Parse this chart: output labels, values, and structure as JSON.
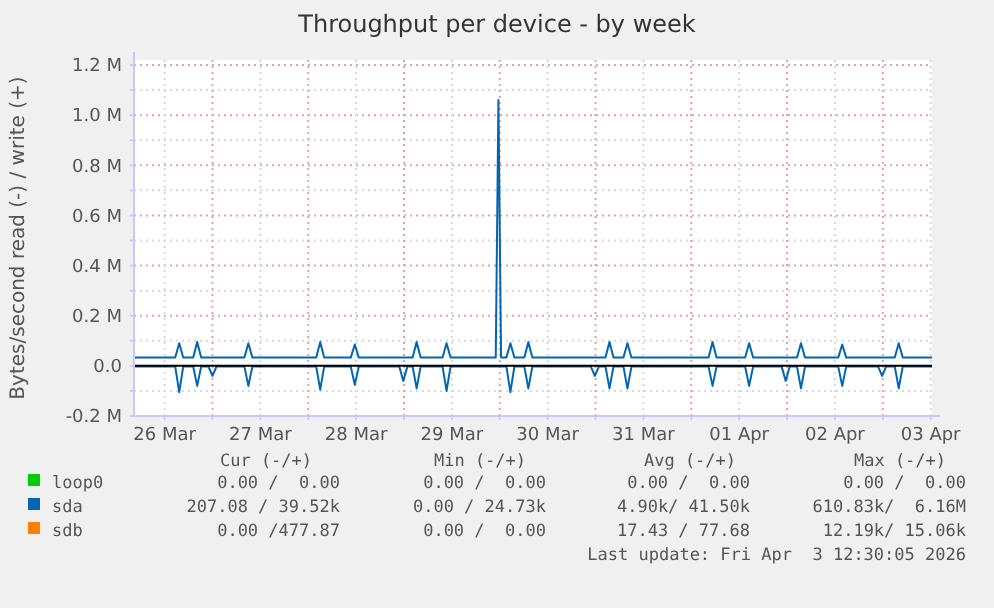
{
  "chart_data": {
    "type": "line",
    "title": "Throughput per device - by week",
    "ylabel": "Bytes/second read (-) / write (+)",
    "xlim": [
      "2026-03-26T04:20",
      "2026-04-03T12:20"
    ],
    "xticks": [
      {
        "value": "2026-03-26T12:00",
        "label": "26 Mar"
      },
      {
        "value": "2026-03-27T00:00",
        "label": null
      },
      {
        "value": "2026-03-27T12:00",
        "label": "27 Mar"
      },
      {
        "value": "2026-03-28T00:00",
        "label": null
      },
      {
        "value": "2026-03-28T12:00",
        "label": "28 Mar"
      },
      {
        "value": "2026-03-29T00:00",
        "label": null
      },
      {
        "value": "2026-03-29T12:00",
        "label": "29 Mar"
      },
      {
        "value": "2026-03-30T00:00",
        "label": null
      },
      {
        "value": "2026-03-30T12:00",
        "label": "30 Mar"
      },
      {
        "value": "2026-03-31T00:00",
        "label": null
      },
      {
        "value": "2026-03-31T12:00",
        "label": "31 Mar"
      },
      {
        "value": "2026-04-01T00:00",
        "label": null
      },
      {
        "value": "2026-04-01T12:00",
        "label": "01 Apr"
      },
      {
        "value": "2026-04-02T00:00",
        "label": null
      },
      {
        "value": "2026-04-02T12:00",
        "label": "02 Apr"
      },
      {
        "value": "2026-04-03T00:00",
        "label": null
      },
      {
        "value": "2026-04-03T12:00",
        "label": "03 Apr"
      }
    ],
    "ylim": [
      -200000,
      1220000
    ],
    "yticks": [
      {
        "value": -200000,
        "label": "-0.2 M"
      },
      {
        "value": -100000,
        "label": null
      },
      {
        "value": 0,
        "label": "0.0"
      },
      {
        "value": 100000,
        "label": null
      },
      {
        "value": 200000,
        "label": "0.2 M"
      },
      {
        "value": 300000,
        "label": null
      },
      {
        "value": 400000,
        "label": "0.4 M"
      },
      {
        "value": 500000,
        "label": null
      },
      {
        "value": 600000,
        "label": "0.6 M"
      },
      {
        "value": 700000,
        "label": null
      },
      {
        "value": 800000,
        "label": "0.8 M"
      },
      {
        "value": 900000,
        "label": null
      },
      {
        "value": 1000000,
        "label": "1.0 M"
      },
      {
        "value": 1100000,
        "label": null
      },
      {
        "value": 1200000,
        "label": "1.2 M"
      }
    ],
    "grid": true,
    "legend": "bottom",
    "marker": "none",
    "line_style": "solid",
    "ref_lines": [
      {
        "axis": "y",
        "value": 0,
        "color": "#000000"
      }
    ],
    "series": [
      {
        "name": "loop0",
        "color": "#00cc00"
      },
      {
        "name": "sda",
        "color": "#0066b3",
        "x": [
          "2026-03-26T04:20",
          "2026-03-26T14:40",
          "2026-03-26T15:40",
          "2026-03-26T16:40",
          "2026-03-26T19:10",
          "2026-03-26T20:10",
          "2026-03-26T21:10",
          "2026-03-27T08:00",
          "2026-03-27T09:00",
          "2026-03-27T10:00",
          "2026-03-28T02:00",
          "2026-03-28T03:00",
          "2026-03-28T04:00",
          "2026-03-28T10:40",
          "2026-03-28T11:40",
          "2026-03-28T12:40",
          "2026-03-29T02:10",
          "2026-03-29T03:10",
          "2026-03-29T04:10",
          "2026-03-29T09:40",
          "2026-03-29T10:40",
          "2026-03-29T11:40",
          "2026-03-29T23:00",
          "2026-03-29T23:40",
          "2026-03-30T00:20",
          "2026-03-30T01:40",
          "2026-03-30T02:40",
          "2026-03-30T03:40",
          "2026-03-30T06:10",
          "2026-03-30T07:10",
          "2026-03-30T08:10",
          "2026-03-31T02:30",
          "2026-03-31T03:30",
          "2026-03-31T04:30",
          "2026-03-31T07:00",
          "2026-03-31T08:00",
          "2026-03-31T09:00",
          "2026-04-01T04:20",
          "2026-04-01T05:20",
          "2026-04-01T06:20",
          "2026-04-01T13:30",
          "2026-04-01T14:30",
          "2026-04-01T15:30",
          "2026-04-02T02:30",
          "2026-04-02T03:30",
          "2026-04-02T04:30",
          "2026-04-02T12:50",
          "2026-04-02T13:50",
          "2026-04-02T14:50",
          "2026-04-03T03:00",
          "2026-04-03T04:00",
          "2026-04-03T05:00",
          "2026-04-03T12:20"
        ],
        "values": [
          33000,
          33000,
          90000,
          33000,
          33000,
          95000,
          33000,
          33000,
          90000,
          33000,
          33000,
          95000,
          33000,
          33000,
          85000,
          33000,
          33000,
          95000,
          33000,
          33000,
          90000,
          33000,
          33000,
          1060000,
          33000,
          33000,
          90000,
          33000,
          33000,
          95000,
          33000,
          33000,
          95000,
          33000,
          33000,
          90000,
          33000,
          33000,
          95000,
          33000,
          33000,
          90000,
          33000,
          33000,
          90000,
          33000,
          33000,
          85000,
          33000,
          33000,
          90000,
          33000,
          33000
        ]
      },
      {
        "color": "#0066b3",
        "x": [
          "2026-03-26T04:20",
          "2026-03-26T14:40",
          "2026-03-26T15:40",
          "2026-03-26T16:40",
          "2026-03-26T19:10",
          "2026-03-26T20:10",
          "2026-03-26T21:10",
          "2026-03-26T23:00",
          "2026-03-27T00:00",
          "2026-03-27T01:00",
          "2026-03-27T08:00",
          "2026-03-27T09:00",
          "2026-03-27T10:00",
          "2026-03-28T02:00",
          "2026-03-28T03:00",
          "2026-03-28T04:00",
          "2026-03-28T10:40",
          "2026-03-28T11:40",
          "2026-03-28T12:40",
          "2026-03-28T22:50",
          "2026-03-28T23:50",
          "2026-03-29T00:50",
          "2026-03-29T02:10",
          "2026-03-29T03:10",
          "2026-03-29T04:10",
          "2026-03-29T09:40",
          "2026-03-29T10:40",
          "2026-03-29T11:40",
          "2026-03-30T01:40",
          "2026-03-30T02:40",
          "2026-03-30T03:40",
          "2026-03-30T06:10",
          "2026-03-30T07:10",
          "2026-03-30T08:10",
          "2026-03-30T22:50",
          "2026-03-30T23:50",
          "2026-03-31T00:50",
          "2026-03-31T02:30",
          "2026-03-31T03:30",
          "2026-03-31T04:30",
          "2026-03-31T07:00",
          "2026-03-31T08:00",
          "2026-03-31T09:00",
          "2026-04-01T04:20",
          "2026-04-01T05:20",
          "2026-04-01T06:20",
          "2026-04-01T13:30",
          "2026-04-01T14:30",
          "2026-04-01T15:30",
          "2026-04-01T22:40",
          "2026-04-01T23:40",
          "2026-04-02T00:40",
          "2026-04-02T02:30",
          "2026-04-02T03:30",
          "2026-04-02T04:30",
          "2026-04-02T12:50",
          "2026-04-02T13:50",
          "2026-04-02T14:50",
          "2026-04-02T22:50",
          "2026-04-02T23:50",
          "2026-04-03T00:50",
          "2026-04-03T03:00",
          "2026-04-03T04:00",
          "2026-04-03T05:00",
          "2026-04-03T12:20"
        ],
        "values": [
          -3000,
          -3000,
          -105000,
          -3000,
          -3000,
          -80000,
          -3000,
          -3000,
          -40000,
          -3000,
          -3000,
          -80000,
          -3000,
          -3000,
          -95000,
          -3000,
          -3000,
          -75000,
          -3000,
          -3000,
          -60000,
          -3000,
          -3000,
          -90000,
          -3000,
          -3000,
          -100000,
          -3000,
          -3000,
          -105000,
          -3000,
          -3000,
          -90000,
          -3000,
          -3000,
          -40000,
          -3000,
          -3000,
          -90000,
          -3000,
          -3000,
          -90000,
          -3000,
          -3000,
          -80000,
          -3000,
          -3000,
          -80000,
          -3000,
          -3000,
          -60000,
          -3000,
          -3000,
          -90000,
          -3000,
          -3000,
          -80000,
          -3000,
          -3000,
          -40000,
          -3000,
          -3000,
          -90000,
          -3000,
          -3000
        ]
      },
      {
        "name": "sdb",
        "color": "#ff8000"
      }
    ],
    "annotations": [
      "Cur (-/+)",
      "Min (-/+)",
      "Avg (-/+)",
      "Max (-/+)",
      "0.00 /  0.00",
      "0.00 /  0.00",
      "0.00 /  0.00",
      "0.00 /  0.00",
      "207.08 / 39.52k",
      "0.00 / 24.73k",
      "4.90k/ 41.50k",
      "610.83k/  6.16M",
      "0.00 /477.87",
      "0.00 /  0.00",
      "17.43 / 77.68",
      "12.19k/ 15.06k",
      "Last update: Fri Apr  3 12:30:05 2026"
    ]
  }
}
